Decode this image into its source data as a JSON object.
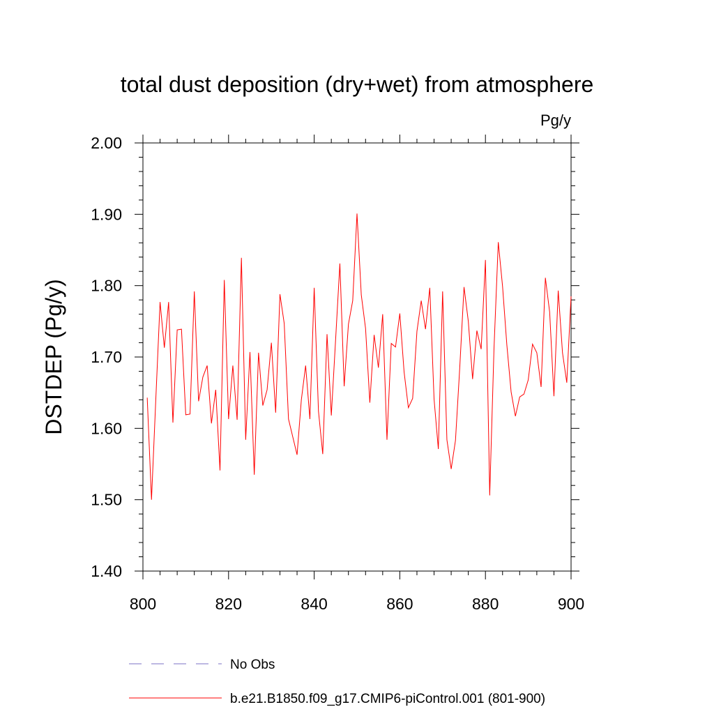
{
  "chart_data": {
    "type": "line",
    "title": "total dust deposition (dry+wet) from atmosphere",
    "units": "Pg/y",
    "xlabel": "",
    "ylabel": "DSTDEP  (Pg/y)",
    "xlim": [
      800,
      900
    ],
    "ylim": [
      1.4,
      2.0
    ],
    "x_ticks": [
      "800",
      "820",
      "840",
      "860",
      "880",
      "900"
    ],
    "y_ticks": [
      "1.40",
      "1.50",
      "1.60",
      "1.70",
      "1.80",
      "1.90",
      "2.00"
    ],
    "x_tick_values": [
      800,
      820,
      840,
      860,
      880,
      900
    ],
    "y_tick_values": [
      1.4,
      1.5,
      1.6,
      1.7,
      1.8,
      1.9,
      2.0
    ],
    "series": [
      {
        "name": "b.e21.B1850.f09_g17.CMIP6-piControl.001 (801-900)",
        "color": "#ff0000",
        "style": "solid",
        "x": [
          801,
          802,
          803,
          804,
          805,
          806,
          807,
          808,
          809,
          810,
          811,
          812,
          813,
          814,
          815,
          816,
          817,
          818,
          819,
          820,
          821,
          822,
          823,
          824,
          825,
          826,
          827,
          828,
          829,
          830,
          831,
          832,
          833,
          834,
          835,
          836,
          837,
          838,
          839,
          840,
          841,
          842,
          843,
          844,
          845,
          846,
          847,
          848,
          849,
          850,
          851,
          852,
          853,
          854,
          855,
          856,
          857,
          858,
          859,
          860,
          861,
          862,
          863,
          864,
          865,
          866,
          867,
          868,
          869,
          870,
          871,
          872,
          873,
          874,
          875,
          876,
          877,
          878,
          879,
          880,
          881,
          882,
          883,
          884,
          885,
          886,
          887,
          888,
          889,
          890,
          891,
          892,
          893,
          894,
          895,
          896,
          897,
          898,
          899,
          900
        ],
        "values": [
          1.643,
          1.5,
          1.64,
          1.777,
          1.713,
          1.777,
          1.608,
          1.738,
          1.739,
          1.619,
          1.62,
          1.792,
          1.638,
          1.672,
          1.688,
          1.607,
          1.654,
          1.541,
          1.808,
          1.613,
          1.688,
          1.612,
          1.839,
          1.584,
          1.707,
          1.535,
          1.706,
          1.632,
          1.654,
          1.72,
          1.622,
          1.788,
          1.747,
          1.613,
          1.588,
          1.563,
          1.64,
          1.688,
          1.613,
          1.797,
          1.624,
          1.564,
          1.732,
          1.618,
          1.724,
          1.831,
          1.659,
          1.746,
          1.779,
          1.901,
          1.787,
          1.74,
          1.636,
          1.731,
          1.685,
          1.76,
          1.584,
          1.719,
          1.714,
          1.761,
          1.679,
          1.629,
          1.642,
          1.736,
          1.779,
          1.739,
          1.797,
          1.641,
          1.571,
          1.792,
          1.584,
          1.543,
          1.583,
          1.685,
          1.798,
          1.75,
          1.669,
          1.737,
          1.711,
          1.836,
          1.506,
          1.712,
          1.861,
          1.799,
          1.717,
          1.651,
          1.617,
          1.644,
          1.648,
          1.668,
          1.718,
          1.706,
          1.658,
          1.811,
          1.763,
          1.645,
          1.793,
          1.706,
          1.664,
          1.785
        ]
      }
    ],
    "legend": [
      {
        "label": "No Obs",
        "color": "#7b72c4",
        "style": "dashed"
      },
      {
        "label": "b.e21.B1850.f09_g17.CMIP6-piControl.001 (801-900)",
        "color": "#ff0000",
        "style": "solid"
      }
    ],
    "grid": false
  }
}
